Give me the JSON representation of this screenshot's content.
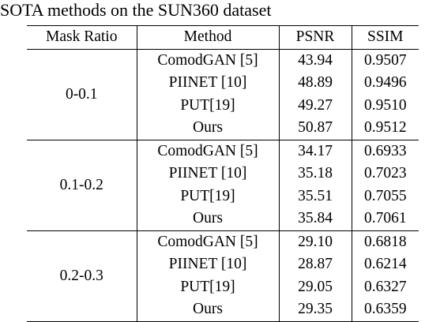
{
  "caption": "SOTA methods on the SUN360 dataset",
  "table": {
    "headers": [
      "Mask Ratio",
      "Method",
      "PSNR",
      "SSIM"
    ],
    "groups": [
      {
        "mask_ratio": "0-0.1",
        "rows": [
          {
            "method": "ComodGAN [5]",
            "psnr": "43.94",
            "ssim": "0.9507",
            "psnr_bold": false,
            "ssim_bold": false
          },
          {
            "method": "PIINET [10]",
            "psnr": "48.89",
            "ssim": "0.9496",
            "psnr_bold": false,
            "ssim_bold": false
          },
          {
            "method": "PUT[19]",
            "psnr": "49.27",
            "ssim": "0.9510",
            "psnr_bold": false,
            "ssim_bold": false
          },
          {
            "method": "Ours",
            "psnr": "50.87",
            "ssim": "0.9512",
            "psnr_bold": true,
            "ssim_bold": true
          }
        ]
      },
      {
        "mask_ratio": "0.1-0.2",
        "rows": [
          {
            "method": "ComodGAN [5]",
            "psnr": "34.17",
            "ssim": "0.6933",
            "psnr_bold": false,
            "ssim_bold": false
          },
          {
            "method": "PIINET [10]",
            "psnr": "35.18",
            "ssim": "0.7023",
            "psnr_bold": false,
            "ssim_bold": false
          },
          {
            "method": "PUT[19]",
            "psnr": "35.51",
            "ssim": "0.7055",
            "psnr_bold": false,
            "ssim_bold": false
          },
          {
            "method": "Ours",
            "psnr": "35.84",
            "ssim": "0.7061",
            "psnr_bold": true,
            "ssim_bold": true
          }
        ]
      },
      {
        "mask_ratio": "0.2-0.3",
        "rows": [
          {
            "method": "ComodGAN [5]",
            "psnr": "29.10",
            "ssim": "0.6818",
            "psnr_bold": false,
            "ssim_bold": true
          },
          {
            "method": "PIINET [10]",
            "psnr": "28.87",
            "ssim": "0.6214",
            "psnr_bold": false,
            "ssim_bold": false
          },
          {
            "method": "PUT[19]",
            "psnr": "29.05",
            "ssim": "0.6327",
            "psnr_bold": false,
            "ssim_bold": false
          },
          {
            "method": "Ours",
            "psnr": "29.35",
            "ssim": "0.6359",
            "psnr_bold": true,
            "ssim_bold": false
          }
        ]
      }
    ]
  }
}
